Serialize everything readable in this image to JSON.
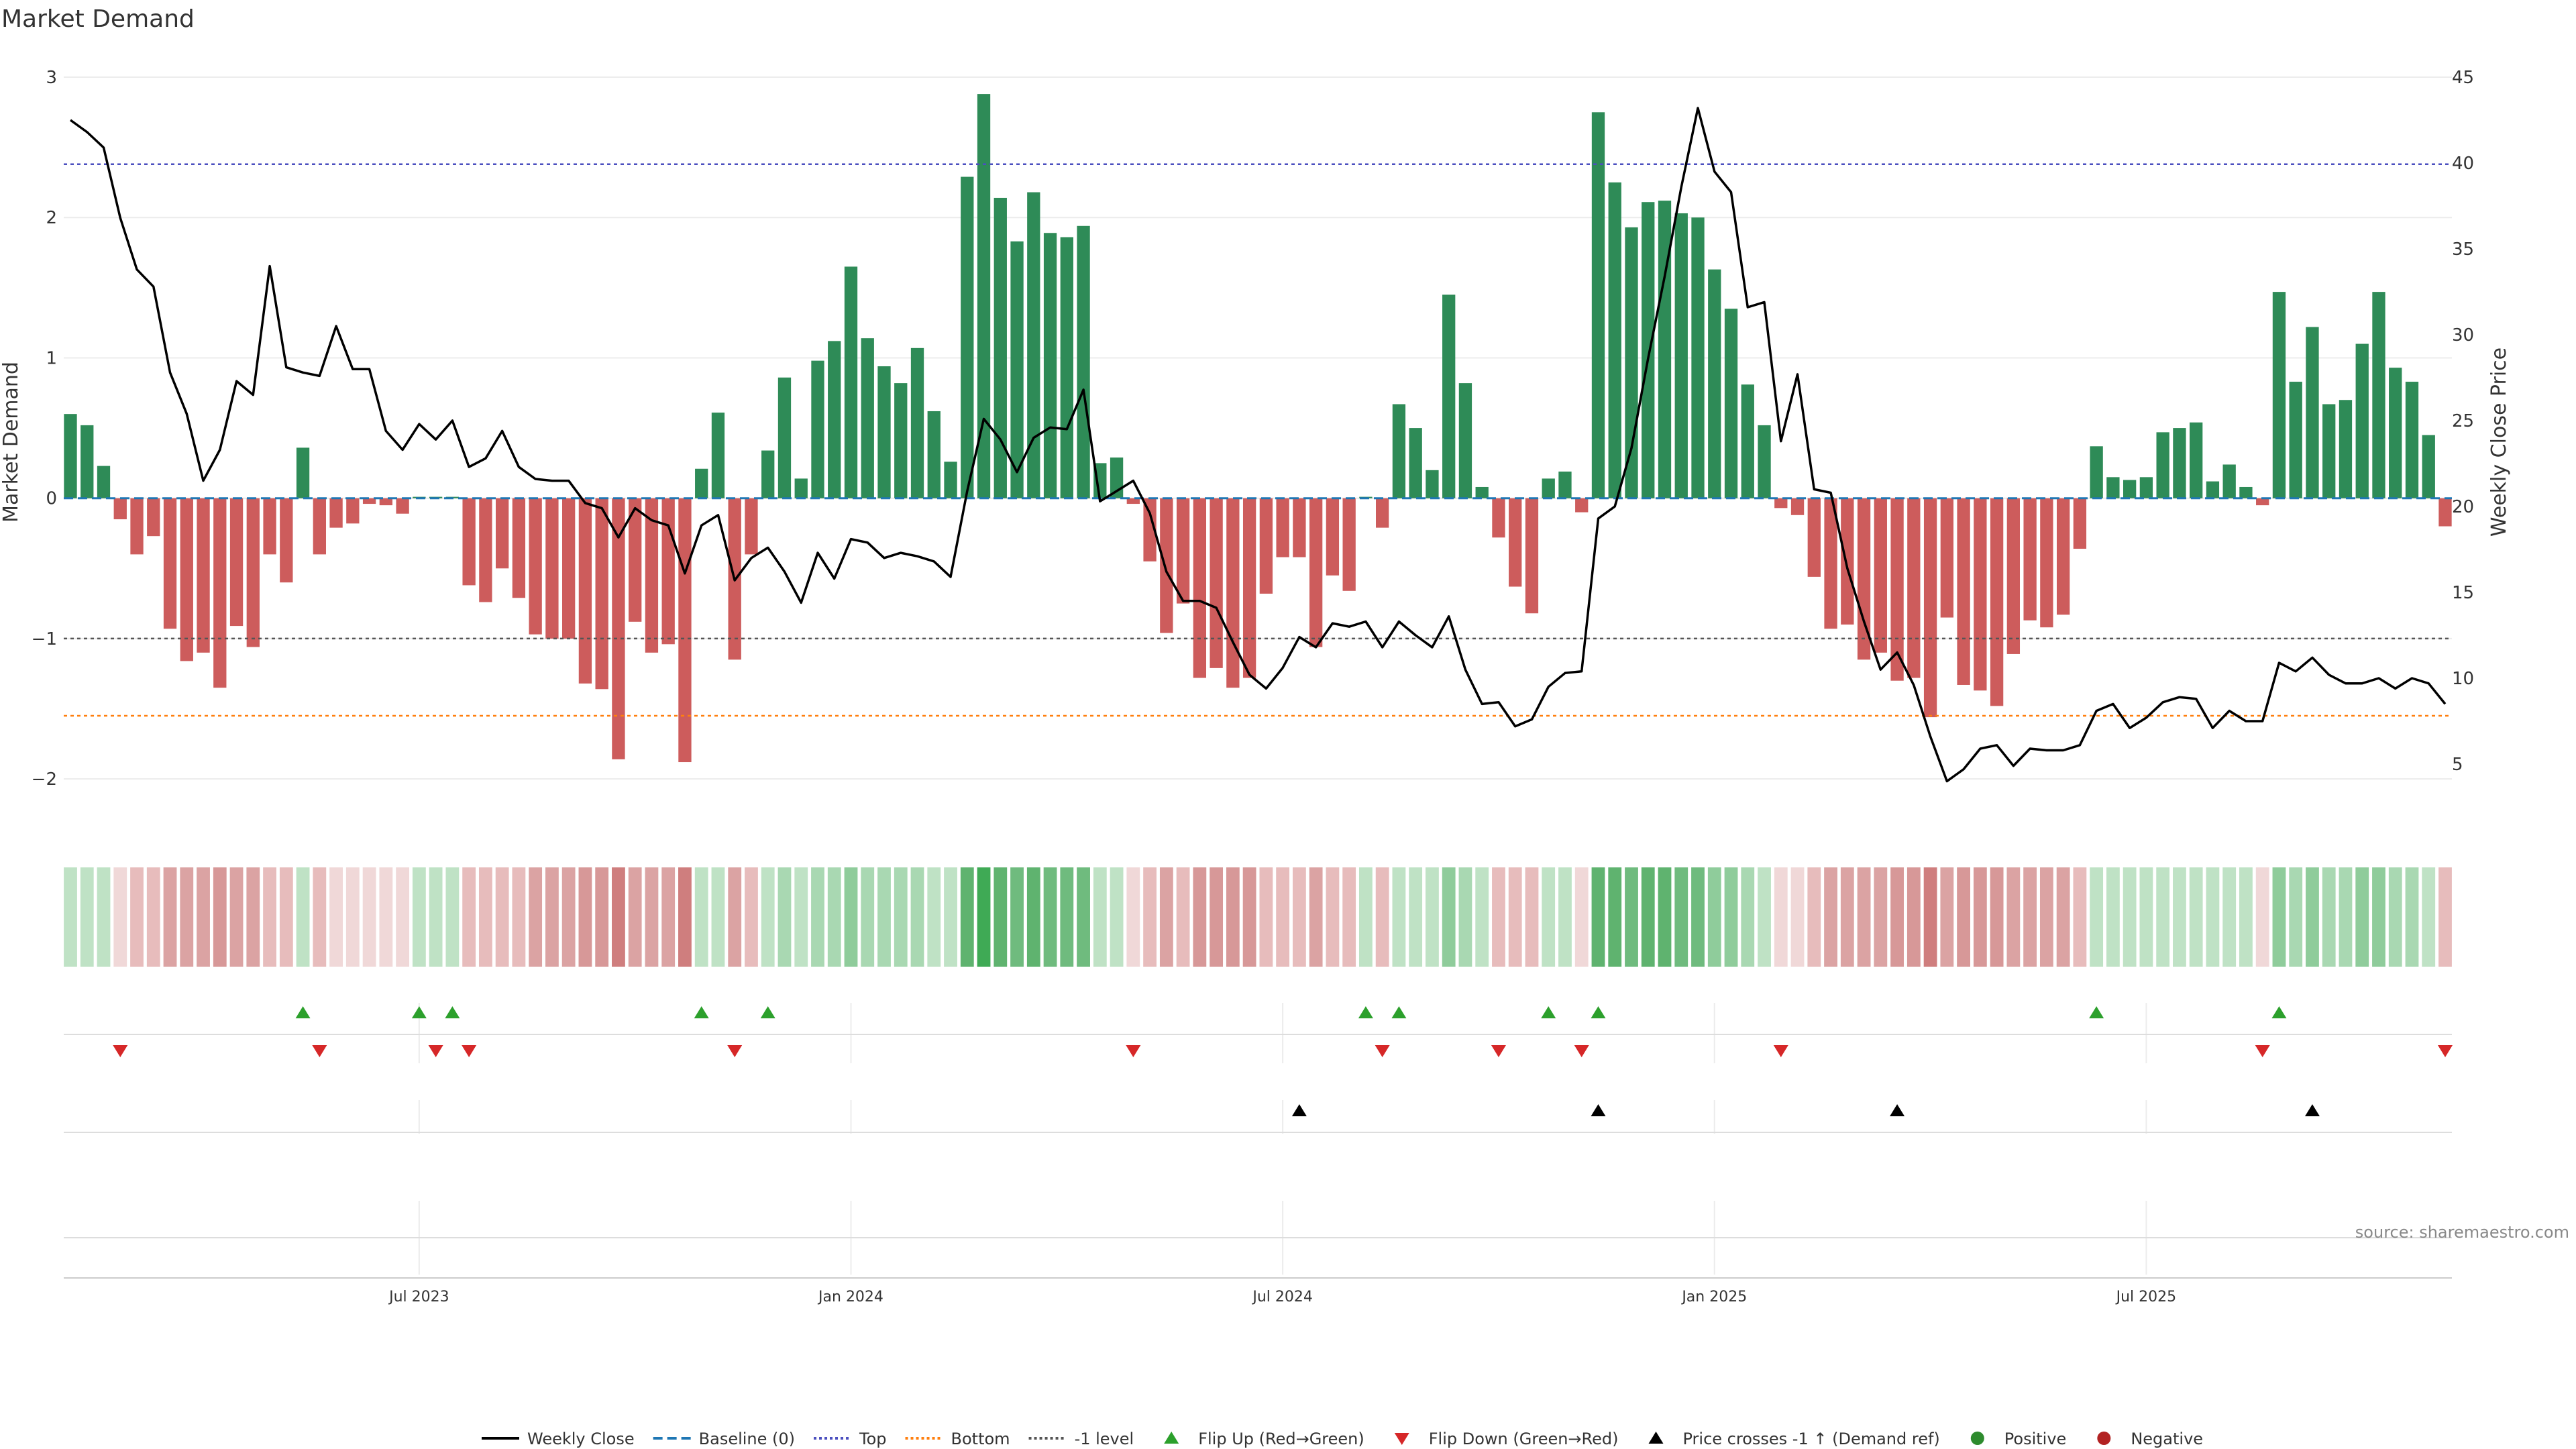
{
  "chart_data": {
    "type": "bar+line",
    "title": "Market Demand",
    "ylabel_left": "Market Demand",
    "ylabel_right": "Weekly Close Price",
    "source": "source: sharemaestro.com",
    "ylim_left": [
      -2.2,
      3.0
    ],
    "ylim_right": [
      2.5,
      45
    ],
    "yticks_left": [
      {
        "v": -2,
        "t": "−2"
      },
      {
        "v": -1,
        "t": "−1"
      },
      {
        "v": 0,
        "t": "0"
      },
      {
        "v": 1,
        "t": "1"
      },
      {
        "v": 2,
        "t": "2"
      },
      {
        "v": 3,
        "t": "3"
      }
    ],
    "yticks_right": [
      {
        "v": 5,
        "t": "5"
      },
      {
        "v": 10,
        "t": "10"
      },
      {
        "v": 15,
        "t": "15"
      },
      {
        "v": 20,
        "t": "20"
      },
      {
        "v": 25,
        "t": "25"
      },
      {
        "v": 30,
        "t": "30"
      },
      {
        "v": 35,
        "t": "35"
      },
      {
        "v": 40,
        "t": "40"
      },
      {
        "v": 45,
        "t": "45"
      }
    ],
    "x_ticks": [
      {
        "i": 21,
        "t": "Jul 2023"
      },
      {
        "i": 47,
        "t": "Jan 2024"
      },
      {
        "i": 73,
        "t": "Jul 2024"
      },
      {
        "i": 99,
        "t": "Jan 2025"
      },
      {
        "i": 125,
        "t": "Jul 2025"
      }
    ],
    "reference_lines": {
      "top": 2.38,
      "bottom": -1.55,
      "minus_one": -1.0,
      "baseline": 0
    },
    "demand": [
      0.6,
      0.52,
      0.23,
      -0.15,
      -0.4,
      -0.27,
      -0.93,
      -1.16,
      -1.1,
      -1.35,
      -0.91,
      -1.06,
      -0.4,
      -0.6,
      0.36,
      -0.4,
      -0.21,
      -0.18,
      -0.04,
      -0.05,
      -0.11,
      0.01,
      0.01,
      0.01,
      -0.62,
      -0.74,
      -0.5,
      -0.71,
      -0.97,
      -1.0,
      -1.0,
      -1.32,
      -1.36,
      -1.86,
      -0.88,
      -1.1,
      -1.04,
      -1.88,
      0.21,
      0.61,
      -1.15,
      -0.4,
      0.34,
      0.86,
      0.14,
      0.98,
      1.12,
      1.65,
      1.14,
      0.94,
      0.82,
      1.07,
      0.62,
      0.26,
      2.29,
      2.88,
      2.14,
      1.83,
      2.18,
      1.89,
      1.86,
      1.94,
      0.25,
      0.29,
      -0.04,
      -0.45,
      -0.96,
      -0.75,
      -1.28,
      -1.21,
      -1.35,
      -1.28,
      -0.68,
      -0.42,
      -0.42,
      -1.06,
      -0.55,
      -0.66,
      0.01,
      -0.21,
      0.67,
      0.5,
      0.2,
      1.45,
      0.82,
      0.08,
      -0.28,
      -0.63,
      -0.82,
      0.14,
      0.19,
      -0.1,
      2.75,
      2.25,
      1.93,
      2.11,
      2.12,
      2.03,
      2.0,
      1.63,
      1.35,
      0.81,
      0.52,
      -0.07,
      -0.12,
      -0.56,
      -0.93,
      -0.9,
      -1.15,
      -1.1,
      -1.3,
      -1.28,
      -1.56,
      -0.85,
      -1.33,
      -1.37,
      -1.48,
      -1.11,
      -0.87,
      -0.92,
      -0.83,
      -0.36,
      0.37,
      0.15,
      0.13,
      0.15,
      0.47,
      0.5,
      0.54,
      0.12,
      0.24,
      0.08,
      -0.05,
      1.47,
      0.83,
      1.22,
      0.67,
      0.7,
      1.1,
      1.47,
      0.93,
      0.83,
      0.45,
      -0.2
    ],
    "weekly_close": [
      42.5,
      41.8,
      40.9,
      36.8,
      33.8,
      32.8,
      27.8,
      25.4,
      21.5,
      23.3,
      27.3,
      26.5,
      34.0,
      28.1,
      27.8,
      27.6,
      30.5,
      28.0,
      28.0,
      24.4,
      23.3,
      24.8,
      23.9,
      25.0,
      22.3,
      22.8,
      24.4,
      22.3,
      21.6,
      21.5,
      21.5,
      20.2,
      19.9,
      18.2,
      19.9,
      19.2,
      18.9,
      16.1,
      18.9,
      19.5,
      15.7,
      17.0,
      17.6,
      16.2,
      14.4,
      17.3,
      15.8,
      18.1,
      17.9,
      17.0,
      17.3,
      17.1,
      16.8,
      15.9,
      20.9,
      25.1,
      23.9,
      22.0,
      24.0,
      24.6,
      24.5,
      26.8,
      20.3,
      20.9,
      21.5,
      19.6,
      16.2,
      14.5,
      14.5,
      14.1,
      12.1,
      10.2,
      9.4,
      10.6,
      12.4,
      11.8,
      13.2,
      13.0,
      13.3,
      11.8,
      13.3,
      12.5,
      11.8,
      13.6,
      10.5,
      8.5,
      8.6,
      7.2,
      7.6,
      9.5,
      10.3,
      10.4,
      19.3,
      20.0,
      23.4,
      28.6,
      33.4,
      38.6,
      43.2,
      39.5,
      38.3,
      31.6,
      31.9,
      23.8,
      27.7,
      21.0,
      20.8,
      16.4,
      13.3,
      10.5,
      11.5,
      9.6,
      6.6,
      4.0,
      4.7,
      5.9,
      6.1,
      4.9,
      5.9,
      5.8,
      5.8,
      6.1,
      8.1,
      8.5,
      7.1,
      7.7,
      8.6,
      8.9,
      8.8,
      7.1,
      8.1,
      7.5,
      7.5,
      10.9,
      10.4,
      11.2,
      10.2,
      9.7,
      9.7,
      10.0,
      9.4,
      10.0,
      9.7,
      8.5
    ],
    "strip_colors": [
      "#bfe2c5",
      "#bfe2c5",
      "#bfe2c5",
      "#f0d8d8",
      "#e7bcbc",
      "#e7bcbc",
      "#dba3a3",
      "#dba3a3",
      "#dba3a3",
      "#d79898",
      "#dba3a3",
      "#dba3a3",
      "#e7bcbc",
      "#e7bcbc",
      "#bfe2c5",
      "#e7bcbc",
      "#f0d8d8",
      "#f0d8d8",
      "#f0d8d8",
      "#f0d8d8",
      "#f0d8d8",
      "#bfe2c5",
      "#bfe2c5",
      "#bfe2c5",
      "#e7bcbc",
      "#e7bcbc",
      "#e7bcbc",
      "#e7bcbc",
      "#dba3a3",
      "#dba3a3",
      "#dba3a3",
      "#d79898",
      "#d79898",
      "#cf7e7e",
      "#dba3a3",
      "#dba3a3",
      "#dba3a3",
      "#cf7e7e",
      "#bfe2c5",
      "#bfe2c5",
      "#dba3a3",
      "#e7bcbc",
      "#bfe2c5",
      "#a9d8b2",
      "#bfe2c5",
      "#a9d8b2",
      "#a9d8b2",
      "#8fcc9b",
      "#a9d8b2",
      "#a9d8b2",
      "#a9d8b2",
      "#a9d8b2",
      "#bfe2c5",
      "#bfe2c5",
      "#5fb36f",
      "#3faa55",
      "#5fb36f",
      "#6fbb7e",
      "#5fb36f",
      "#6fbb7e",
      "#6fbb7e",
      "#6fbb7e",
      "#bfe2c5",
      "#bfe2c5",
      "#f0d8d8",
      "#e7bcbc",
      "#dba3a3",
      "#e7bcbc",
      "#d79898",
      "#d79898",
      "#d79898",
      "#d79898",
      "#e7bcbc",
      "#e7bcbc",
      "#e7bcbc",
      "#dba3a3",
      "#e7bcbc",
      "#e7bcbc",
      "#bfe2c5",
      "#e7bcbc",
      "#bfe2c5",
      "#bfe2c5",
      "#bfe2c5",
      "#8fcc9b",
      "#a9d8b2",
      "#bfe2c5",
      "#e7bcbc",
      "#e7bcbc",
      "#e7bcbc",
      "#bfe2c5",
      "#bfe2c5",
      "#f0d8d8",
      "#5fb36f",
      "#5fb36f",
      "#6fbb7e",
      "#5fb36f",
      "#5fb36f",
      "#6fbb7e",
      "#6fbb7e",
      "#8fcc9b",
      "#8fcc9b",
      "#a9d8b2",
      "#bfe2c5",
      "#f0d8d8",
      "#f0d8d8",
      "#e7bcbc",
      "#dba3a3",
      "#dba3a3",
      "#dba3a3",
      "#dba3a3",
      "#d79898",
      "#d79898",
      "#cf7e7e",
      "#dba3a3",
      "#d79898",
      "#d79898",
      "#d79898",
      "#dba3a3",
      "#dba3a3",
      "#dba3a3",
      "#dba3a3",
      "#e7bcbc",
      "#bfe2c5",
      "#bfe2c5",
      "#bfe2c5",
      "#bfe2c5",
      "#bfe2c5",
      "#bfe2c5",
      "#bfe2c5",
      "#bfe2c5",
      "#bfe2c5",
      "#bfe2c5",
      "#f0d8d8",
      "#8fcc9b",
      "#a9d8b2",
      "#8fcc9b",
      "#a9d8b2",
      "#a9d8b2",
      "#8fcc9b",
      "#8fcc9b",
      "#a9d8b2",
      "#a9d8b2",
      "#bfe2c5",
      "#e7bcbc"
    ],
    "flip_up_weeks": [
      14,
      21,
      23,
      38,
      42,
      78,
      80,
      89,
      92,
      122,
      133
    ],
    "flip_down_weeks": [
      3,
      15,
      22,
      24,
      40,
      64,
      79,
      86,
      91,
      103,
      132,
      143
    ],
    "price_cross_weeks": [
      74,
      92,
      110,
      135
    ],
    "legend": [
      {
        "type": "line",
        "color": "#000000",
        "dash": "",
        "label": "Weekly Close"
      },
      {
        "type": "line",
        "color": "#1f77b4",
        "dash": "14,7",
        "label": "Baseline (0)"
      },
      {
        "type": "line",
        "color": "#4b4fbf",
        "dash": "4,4",
        "label": "Top"
      },
      {
        "type": "line",
        "color": "#ff7f0e",
        "dash": "4,4",
        "label": "Bottom"
      },
      {
        "type": "line",
        "color": "#555555",
        "dash": "4,4",
        "label": "-1 level"
      },
      {
        "type": "tri-up",
        "color": "#2ca02c",
        "label": "Flip Up (Red→Green)"
      },
      {
        "type": "tri-down",
        "color": "#d62728",
        "label": "Flip Down (Green→Red)"
      },
      {
        "type": "tri-up",
        "color": "#000000",
        "label": "Price crosses -1 ↑ (Demand ref)"
      },
      {
        "type": "dot",
        "color": "#2e8b2e",
        "label": "Positive"
      },
      {
        "type": "dot",
        "color": "#b22222",
        "label": "Negative"
      }
    ],
    "colors": {
      "positive_bar": "#2e8b57",
      "negative_bar": "#cd5c5c",
      "flip_up": "#2ca02c",
      "flip_down": "#d62728",
      "cross": "#000000"
    }
  }
}
